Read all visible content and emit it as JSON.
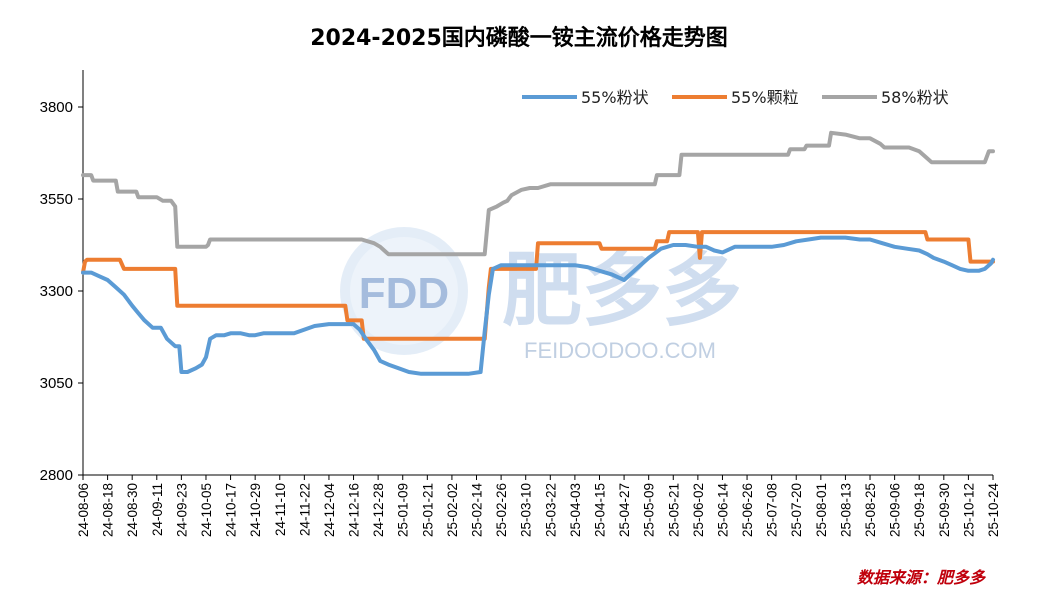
{
  "chart_data": {
    "type": "line",
    "title": "2024-2025国内磷酸一铵主流价格走势图",
    "source": "数据来源：肥多多",
    "ylim": [
      2800,
      3800
    ],
    "yticks": [
      2800,
      3050,
      3300,
      3550,
      3800
    ],
    "xlim": [
      "2024-08-06",
      "2025-10-24"
    ],
    "xtick_labels": [
      "24-08-06",
      "24-08-18",
      "24-08-30",
      "24-09-11",
      "24-09-23",
      "24-10-05",
      "24-10-17",
      "24-10-29",
      "24-11-10",
      "24-11-22",
      "24-12-04",
      "24-12-16",
      "24-12-28",
      "25-01-09",
      "25-01-21",
      "25-02-02",
      "25-02-14",
      "25-02-26",
      "25-03-10",
      "25-03-22",
      "25-04-03",
      "25-04-15",
      "25-04-27",
      "25-05-09",
      "25-05-21",
      "25-06-02",
      "25-06-14",
      "25-06-26",
      "25-07-08",
      "25-07-20",
      "25-08-01",
      "25-08-13",
      "25-08-25",
      "25-09-06",
      "25-09-18",
      "25-09-30",
      "25-10-12",
      "25-10-24"
    ],
    "legend_position": "top-right",
    "grid": false,
    "series": [
      {
        "name": "55%粉状",
        "color": "#5b9bd5",
        "points": [
          [
            "2024-08-06",
            3350
          ],
          [
            "2024-08-10",
            3350
          ],
          [
            "2024-08-14",
            3340
          ],
          [
            "2024-08-18",
            3330
          ],
          [
            "2024-08-22",
            3310
          ],
          [
            "2024-08-26",
            3290
          ],
          [
            "2024-08-30",
            3260
          ],
          [
            "2024-09-02",
            3240
          ],
          [
            "2024-09-05",
            3220
          ],
          [
            "2024-09-09",
            3200
          ],
          [
            "2024-09-13",
            3200
          ],
          [
            "2024-09-16",
            3170
          ],
          [
            "2024-09-20",
            3150
          ],
          [
            "2024-09-22",
            3150
          ],
          [
            "2024-09-23",
            3080
          ],
          [
            "2024-09-26",
            3080
          ],
          [
            "2024-09-30",
            3090
          ],
          [
            "2024-10-03",
            3100
          ],
          [
            "2024-10-05",
            3120
          ],
          [
            "2024-10-07",
            3170
          ],
          [
            "2024-10-10",
            3180
          ],
          [
            "2024-10-14",
            3180
          ],
          [
            "2024-10-17",
            3185
          ],
          [
            "2024-10-22",
            3185
          ],
          [
            "2024-10-26",
            3180
          ],
          [
            "2024-10-29",
            3180
          ],
          [
            "2024-11-02",
            3185
          ],
          [
            "2024-11-10",
            3185
          ],
          [
            "2024-11-17",
            3185
          ],
          [
            "2024-11-22",
            3195
          ],
          [
            "2024-11-27",
            3205
          ],
          [
            "2024-12-04",
            3210
          ],
          [
            "2024-12-10",
            3210
          ],
          [
            "2024-12-16",
            3210
          ],
          [
            "2024-12-19",
            3195
          ],
          [
            "2024-12-22",
            3170
          ],
          [
            "2024-12-26",
            3140
          ],
          [
            "2024-12-29",
            3110
          ],
          [
            "2025-01-02",
            3100
          ],
          [
            "2025-01-07",
            3090
          ],
          [
            "2025-01-12",
            3080
          ],
          [
            "2025-01-18",
            3075
          ],
          [
            "2025-01-21",
            3075
          ],
          [
            "2025-02-02",
            3075
          ],
          [
            "2025-02-10",
            3075
          ],
          [
            "2025-02-16",
            3080
          ],
          [
            "2025-02-18",
            3190
          ],
          [
            "2025-02-20",
            3290
          ],
          [
            "2025-02-22",
            3360
          ],
          [
            "2025-02-26",
            3370
          ],
          [
            "2025-03-04",
            3370
          ],
          [
            "2025-03-10",
            3370
          ],
          [
            "2025-03-22",
            3370
          ],
          [
            "2025-04-03",
            3370
          ],
          [
            "2025-04-09",
            3365
          ],
          [
            "2025-04-15",
            3355
          ],
          [
            "2025-04-21",
            3345
          ],
          [
            "2025-04-27",
            3330
          ],
          [
            "2025-05-03",
            3360
          ],
          [
            "2025-05-09",
            3390
          ],
          [
            "2025-05-15",
            3415
          ],
          [
            "2025-05-21",
            3425
          ],
          [
            "2025-05-27",
            3425
          ],
          [
            "2025-06-02",
            3420
          ],
          [
            "2025-06-06",
            3420
          ],
          [
            "2025-06-10",
            3410
          ],
          [
            "2025-06-14",
            3405
          ],
          [
            "2025-06-20",
            3420
          ],
          [
            "2025-06-26",
            3420
          ],
          [
            "2025-07-08",
            3420
          ],
          [
            "2025-07-14",
            3425
          ],
          [
            "2025-07-20",
            3435
          ],
          [
            "2025-07-26",
            3440
          ],
          [
            "2025-08-01",
            3445
          ],
          [
            "2025-08-08",
            3445
          ],
          [
            "2025-08-13",
            3445
          ],
          [
            "2025-08-20",
            3440
          ],
          [
            "2025-08-25",
            3440
          ],
          [
            "2025-08-31",
            3430
          ],
          [
            "2025-09-06",
            3420
          ],
          [
            "2025-09-12",
            3415
          ],
          [
            "2025-09-18",
            3410
          ],
          [
            "2025-09-22",
            3400
          ],
          [
            "2025-09-25",
            3390
          ],
          [
            "2025-09-30",
            3380
          ],
          [
            "2025-10-04",
            3370
          ],
          [
            "2025-10-08",
            3360
          ],
          [
            "2025-10-12",
            3355
          ],
          [
            "2025-10-17",
            3355
          ],
          [
            "2025-10-20",
            3360
          ],
          [
            "2025-10-23",
            3375
          ],
          [
            "2025-10-24",
            3385
          ]
        ]
      },
      {
        "name": "55%颗粒",
        "color": "#ed7d31",
        "points": [
          [
            "2024-08-06",
            3350
          ],
          [
            "2024-08-07",
            3380
          ],
          [
            "2024-08-08",
            3385
          ],
          [
            "2024-08-18",
            3385
          ],
          [
            "2024-08-24",
            3385
          ],
          [
            "2024-08-26",
            3360
          ],
          [
            "2024-08-30",
            3360
          ],
          [
            "2024-09-11",
            3360
          ],
          [
            "2024-09-20",
            3360
          ],
          [
            "2024-09-21",
            3260
          ],
          [
            "2024-09-23",
            3260
          ],
          [
            "2024-10-05",
            3260
          ],
          [
            "2024-10-17",
            3260
          ],
          [
            "2024-11-10",
            3260
          ],
          [
            "2024-12-04",
            3260
          ],
          [
            "2024-12-12",
            3260
          ],
          [
            "2024-12-13",
            3220
          ],
          [
            "2024-12-20",
            3220
          ],
          [
            "2024-12-21",
            3170
          ],
          [
            "2024-12-28",
            3170
          ],
          [
            "2025-01-21",
            3170
          ],
          [
            "2025-02-14",
            3170
          ],
          [
            "2025-02-18",
            3170
          ],
          [
            "2025-02-20",
            3310
          ],
          [
            "2025-02-21",
            3360
          ],
          [
            "2025-03-10",
            3360
          ],
          [
            "2025-03-15",
            3360
          ],
          [
            "2025-03-16",
            3430
          ],
          [
            "2025-03-22",
            3430
          ],
          [
            "2025-04-03",
            3430
          ],
          [
            "2025-04-15",
            3430
          ],
          [
            "2025-04-16",
            3415
          ],
          [
            "2025-04-27",
            3415
          ],
          [
            "2025-05-09",
            3415
          ],
          [
            "2025-05-12",
            3415
          ],
          [
            "2025-05-13",
            3435
          ],
          [
            "2025-05-18",
            3435
          ],
          [
            "2025-05-19",
            3460
          ],
          [
            "2025-05-27",
            3460
          ],
          [
            "2025-06-02",
            3460
          ],
          [
            "2025-06-03",
            3390
          ],
          [
            "2025-06-04",
            3460
          ],
          [
            "2025-06-14",
            3460
          ],
          [
            "2025-07-08",
            3460
          ],
          [
            "2025-08-01",
            3460
          ],
          [
            "2025-09-06",
            3460
          ],
          [
            "2025-09-19",
            3460
          ],
          [
            "2025-09-21",
            3460
          ],
          [
            "2025-09-22",
            3440
          ],
          [
            "2025-09-30",
            3440
          ],
          [
            "2025-10-12",
            3440
          ],
          [
            "2025-10-13",
            3380
          ],
          [
            "2025-10-24",
            3380
          ]
        ]
      },
      {
        "name": "58%粉状",
        "color": "#a5a5a5",
        "points": [
          [
            "2024-08-06",
            3615
          ],
          [
            "2024-08-10",
            3615
          ],
          [
            "2024-08-11",
            3600
          ],
          [
            "2024-08-22",
            3600
          ],
          [
            "2024-08-23",
            3570
          ],
          [
            "2024-09-01",
            3570
          ],
          [
            "2024-09-02",
            3555
          ],
          [
            "2024-09-11",
            3555
          ],
          [
            "2024-09-14",
            3545
          ],
          [
            "2024-09-18",
            3545
          ],
          [
            "2024-09-20",
            3530
          ],
          [
            "2024-09-21",
            3420
          ],
          [
            "2024-10-05",
            3420
          ],
          [
            "2024-10-06",
            3425
          ],
          [
            "2024-10-07",
            3440
          ],
          [
            "2024-10-17",
            3440
          ],
          [
            "2024-11-10",
            3440
          ],
          [
            "2024-12-04",
            3440
          ],
          [
            "2024-12-20",
            3440
          ],
          [
            "2024-12-26",
            3430
          ],
          [
            "2024-12-29",
            3420
          ],
          [
            "2025-01-02",
            3400
          ],
          [
            "2025-01-21",
            3400
          ],
          [
            "2025-02-14",
            3400
          ],
          [
            "2025-02-18",
            3400
          ],
          [
            "2025-02-20",
            3520
          ],
          [
            "2025-02-24",
            3530
          ],
          [
            "2025-02-27",
            3540
          ],
          [
            "2025-03-01",
            3545
          ],
          [
            "2025-03-03",
            3560
          ],
          [
            "2025-03-08",
            3575
          ],
          [
            "2025-03-12",
            3580
          ],
          [
            "2025-03-16",
            3580
          ],
          [
            "2025-03-22",
            3590
          ],
          [
            "2025-04-03",
            3590
          ],
          [
            "2025-04-15",
            3590
          ],
          [
            "2025-04-27",
            3590
          ],
          [
            "2025-05-09",
            3590
          ],
          [
            "2025-05-12",
            3590
          ],
          [
            "2025-05-13",
            3615
          ],
          [
            "2025-05-21",
            3615
          ],
          [
            "2025-05-24",
            3615
          ],
          [
            "2025-05-25",
            3670
          ],
          [
            "2025-06-02",
            3670
          ],
          [
            "2025-06-14",
            3670
          ],
          [
            "2025-06-26",
            3670
          ],
          [
            "2025-07-08",
            3670
          ],
          [
            "2025-07-16",
            3670
          ],
          [
            "2025-07-17",
            3685
          ],
          [
            "2025-07-24",
            3685
          ],
          [
            "2025-07-25",
            3695
          ],
          [
            "2025-08-05",
            3695
          ],
          [
            "2025-08-06",
            3730
          ],
          [
            "2025-08-13",
            3725
          ],
          [
            "2025-08-20",
            3715
          ],
          [
            "2025-08-25",
            3715
          ],
          [
            "2025-08-30",
            3700
          ],
          [
            "2025-09-01",
            3690
          ],
          [
            "2025-09-06",
            3690
          ],
          [
            "2025-09-13",
            3690
          ],
          [
            "2025-09-18",
            3680
          ],
          [
            "2025-09-22",
            3660
          ],
          [
            "2025-09-24",
            3650
          ],
          [
            "2025-10-12",
            3650
          ],
          [
            "2025-10-20",
            3650
          ],
          [
            "2025-10-22",
            3680
          ],
          [
            "2025-10-24",
            3680
          ]
        ]
      }
    ]
  },
  "watermark": {
    "logo_text": "FDD",
    "brand_text": "肥多多",
    "domain_text": "FEIDOODOO.COM"
  }
}
